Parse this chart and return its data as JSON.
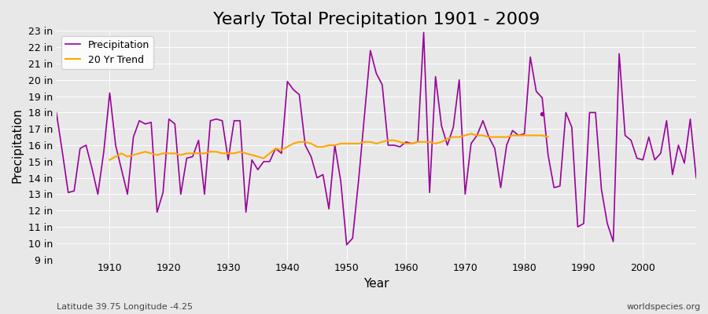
{
  "title": "Yearly Total Precipitation 1901 - 2009",
  "xlabel": "Year",
  "ylabel": "Precipitation",
  "lat_lon_label": "Latitude 39.75 Longitude -4.25",
  "watermark": "worldspecies.org",
  "precip_color": "#990099",
  "trend_color": "#FFA500",
  "bg_color": "#e8e8e8",
  "plot_bg_color": "#e8e8e8",
  "ylim": [
    9,
    23
  ],
  "yticks": [
    9,
    10,
    11,
    12,
    13,
    14,
    15,
    16,
    17,
    18,
    19,
    20,
    21,
    22,
    23
  ],
  "years": [
    1901,
    1902,
    1903,
    1904,
    1905,
    1906,
    1907,
    1908,
    1909,
    1910,
    1911,
    1912,
    1913,
    1914,
    1915,
    1916,
    1917,
    1918,
    1919,
    1920,
    1921,
    1922,
    1923,
    1924,
    1925,
    1926,
    1927,
    1928,
    1929,
    1930,
    1931,
    1932,
    1933,
    1934,
    1935,
    1936,
    1937,
    1938,
    1939,
    1940,
    1941,
    1942,
    1943,
    1944,
    1945,
    1946,
    1947,
    1948,
    1949,
    1950,
    1951,
    1952,
    1953,
    1954,
    1955,
    1956,
    1957,
    1958,
    1959,
    1960,
    1961,
    1962,
    1963,
    1964,
    1965,
    1966,
    1967,
    1968,
    1969,
    1970,
    1971,
    1972,
    1973,
    1974,
    1975,
    1976,
    1977,
    1978,
    1979,
    1980,
    1981,
    1982,
    1983,
    1984,
    1985,
    1986,
    1987,
    1988,
    1989,
    1990,
    1991,
    1992,
    1993,
    1994,
    1995,
    1996,
    1997,
    1998,
    1999,
    2000,
    2001,
    2002,
    2003,
    2004,
    2005,
    2006,
    2007,
    2008,
    2009
  ],
  "precip": [
    18.0,
    15.6,
    13.1,
    13.2,
    15.8,
    16.0,
    14.6,
    13.0,
    15.6,
    19.2,
    16.0,
    14.5,
    13.0,
    16.5,
    17.5,
    17.3,
    17.4,
    11.9,
    13.1,
    17.6,
    17.3,
    13.0,
    15.2,
    15.3,
    16.3,
    13.0,
    17.5,
    17.6,
    17.5,
    15.1,
    17.5,
    17.5,
    11.9,
    15.1,
    14.5,
    15.0,
    15.0,
    15.8,
    15.5,
    19.9,
    19.4,
    19.1,
    16.0,
    15.3,
    14.0,
    14.2,
    12.1,
    16.0,
    13.8,
    9.9,
    10.3,
    13.8,
    17.8,
    21.8,
    20.4,
    19.7,
    16.0,
    16.0,
    15.9,
    16.2,
    16.1,
    16.2,
    22.9,
    13.1,
    20.2,
    17.2,
    16.0,
    17.1,
    20.0,
    13.0,
    16.1,
    16.6,
    17.5,
    16.5,
    15.8,
    13.4,
    16.0,
    16.9,
    16.6,
    16.7,
    21.4,
    19.3,
    18.9,
    15.4,
    13.4,
    13.5,
    18.0,
    17.1,
    11.0,
    11.2,
    18.0,
    18.0,
    13.3,
    11.2,
    10.1,
    21.6,
    16.6,
    16.3,
    15.2,
    15.1,
    16.5,
    15.1,
    15.5,
    17.5,
    14.2,
    16.0,
    14.9,
    17.6,
    14.0
  ],
  "trend_years": [
    1910,
    1911,
    1912,
    1913,
    1914,
    1915,
    1916,
    1917,
    1918,
    1919,
    1920,
    1921,
    1922,
    1923,
    1924,
    1925,
    1926,
    1927,
    1928,
    1929,
    1930,
    1931,
    1932,
    1933,
    1934,
    1935,
    1936,
    1937,
    1938,
    1939,
    1940,
    1941,
    1942,
    1943,
    1944,
    1945,
    1946,
    1947,
    1948,
    1949,
    1950,
    1951,
    1952,
    1953,
    1954,
    1955,
    1956,
    1957,
    1958,
    1959,
    1960,
    1961,
    1962,
    1963,
    1964,
    1965,
    1966,
    1967,
    1968,
    1969,
    1970,
    1971,
    1972,
    1973,
    1974,
    1975,
    1976,
    1977,
    1978,
    1979,
    1980,
    1981,
    1982,
    1983,
    1984
  ],
  "trend": [
    15.1,
    15.3,
    15.5,
    15.3,
    15.4,
    15.5,
    15.6,
    15.5,
    15.4,
    15.5,
    15.5,
    15.5,
    15.4,
    15.5,
    15.5,
    15.5,
    15.5,
    15.6,
    15.6,
    15.5,
    15.5,
    15.5,
    15.6,
    15.5,
    15.4,
    15.3,
    15.2,
    15.5,
    15.8,
    15.7,
    15.9,
    16.1,
    16.2,
    16.2,
    16.1,
    15.9,
    15.9,
    16.0,
    16.0,
    16.1,
    16.1,
    16.1,
    16.1,
    16.2,
    16.2,
    16.1,
    16.2,
    16.3,
    16.3,
    16.2,
    16.1,
    16.1,
    16.2,
    16.2,
    16.2,
    16.1,
    16.2,
    16.4,
    16.5,
    16.5,
    16.6,
    16.7,
    16.6,
    16.6,
    16.5,
    16.5,
    16.5,
    16.5,
    16.6,
    16.6,
    16.6,
    16.6,
    16.6,
    16.6,
    16.5
  ],
  "dot_year": 1983,
  "dot_value": 17.9,
  "legend_labels": [
    "Precipitation",
    "20 Yr Trend"
  ],
  "title_fontsize": 16,
  "axis_label_fontsize": 11,
  "tick_fontsize": 9,
  "legend_fontsize": 9,
  "small_label_fontsize": 8
}
